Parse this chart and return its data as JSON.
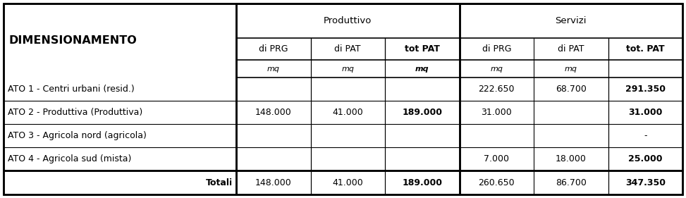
{
  "title": "DIMENSIONAMENTO",
  "group_headers": [
    "Produttivo",
    "Servizi"
  ],
  "col_headers": [
    "di PRG",
    "di PAT",
    "tot PAT",
    "di PRG",
    "di PAT",
    "tot. PAT"
  ],
  "unit_row": [
    "mq",
    "mq",
    "mq",
    "mq",
    "mq",
    ""
  ],
  "rows": [
    {
      "label": "ATO 1 - Centri urbani (resid.)",
      "values": [
        "",
        "",
        "",
        "222.650",
        "68.700",
        "291.350"
      ],
      "bold": [
        false,
        false,
        false,
        false,
        false,
        true
      ]
    },
    {
      "label": "ATO 2 - Produttiva (Produttiva)",
      "values": [
        "148.000",
        "41.000",
        "189.000",
        "31.000",
        "",
        "31.000"
      ],
      "bold": [
        false,
        false,
        true,
        false,
        false,
        true
      ]
    },
    {
      "label": "ATO 3 - Agricola nord (agricola)",
      "values": [
        "",
        "",
        "",
        "",
        "",
        "-"
      ],
      "bold": [
        false,
        false,
        false,
        false,
        false,
        false
      ]
    },
    {
      "label": "ATO 4 - Agricola sud (mista)",
      "values": [
        "",
        "",
        "",
        "7.000",
        "18.000",
        "25.000"
      ],
      "bold": [
        false,
        false,
        false,
        false,
        false,
        true
      ]
    }
  ],
  "totals_label": "Totali",
  "totals_values": [
    "148.000",
    "41.000",
    "189.000",
    "260.650",
    "86.700",
    "347.350"
  ],
  "totals_bold": [
    false,
    false,
    true,
    false,
    false,
    true
  ],
  "background_color": "#ffffff",
  "font_size": 9.0,
  "title_font_size": 11.5
}
